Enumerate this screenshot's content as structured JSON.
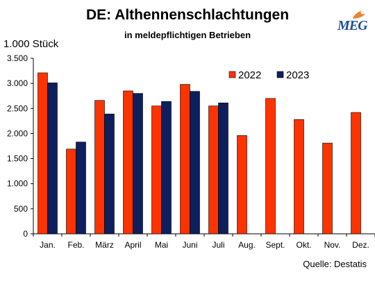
{
  "title": "DE: Althennenschlachtungen",
  "subtitle": "in meldepflichtigen Betrieben",
  "unit_label": "1.000 Stück",
  "source": "Quelle: Destatis",
  "logo_text": "MEG",
  "colors": {
    "series_2022": "#ff3300",
    "series_2023": "#0d1f5c",
    "logo": "#1f4e9c",
    "flame": "#f08030"
  },
  "chart_data": {
    "type": "bar",
    "title": "DE: Althennenschlachtungen",
    "subtitle": "in meldepflichtigen Betrieben",
    "ylabel": "1.000 Stück",
    "xlabel": "",
    "categories": [
      "Jan.",
      "Feb.",
      "März",
      "April",
      "Mai",
      "Juni",
      "Juli",
      "Aug.",
      "Sept.",
      "Okt.",
      "Nov.",
      "Dez."
    ],
    "series": [
      {
        "name": "2022",
        "values": [
          3210,
          1690,
          2660,
          2850,
          2550,
          2980,
          2550,
          1960,
          2700,
          2280,
          1810,
          2420
        ]
      },
      {
        "name": "2023",
        "values": [
          3010,
          1830,
          2390,
          2800,
          2640,
          2840,
          2610,
          null,
          null,
          null,
          null,
          null
        ]
      }
    ],
    "ylim": [
      0,
      3500
    ],
    "yticks": [
      0,
      500,
      1000,
      1500,
      2000,
      2500,
      3000,
      3500
    ],
    "ytick_labels": [
      "0",
      "500",
      "1.000",
      "1.500",
      "2.000",
      "2.500",
      "3.000",
      "3.500"
    ],
    "grid": false,
    "legend_position": "top-right"
  }
}
